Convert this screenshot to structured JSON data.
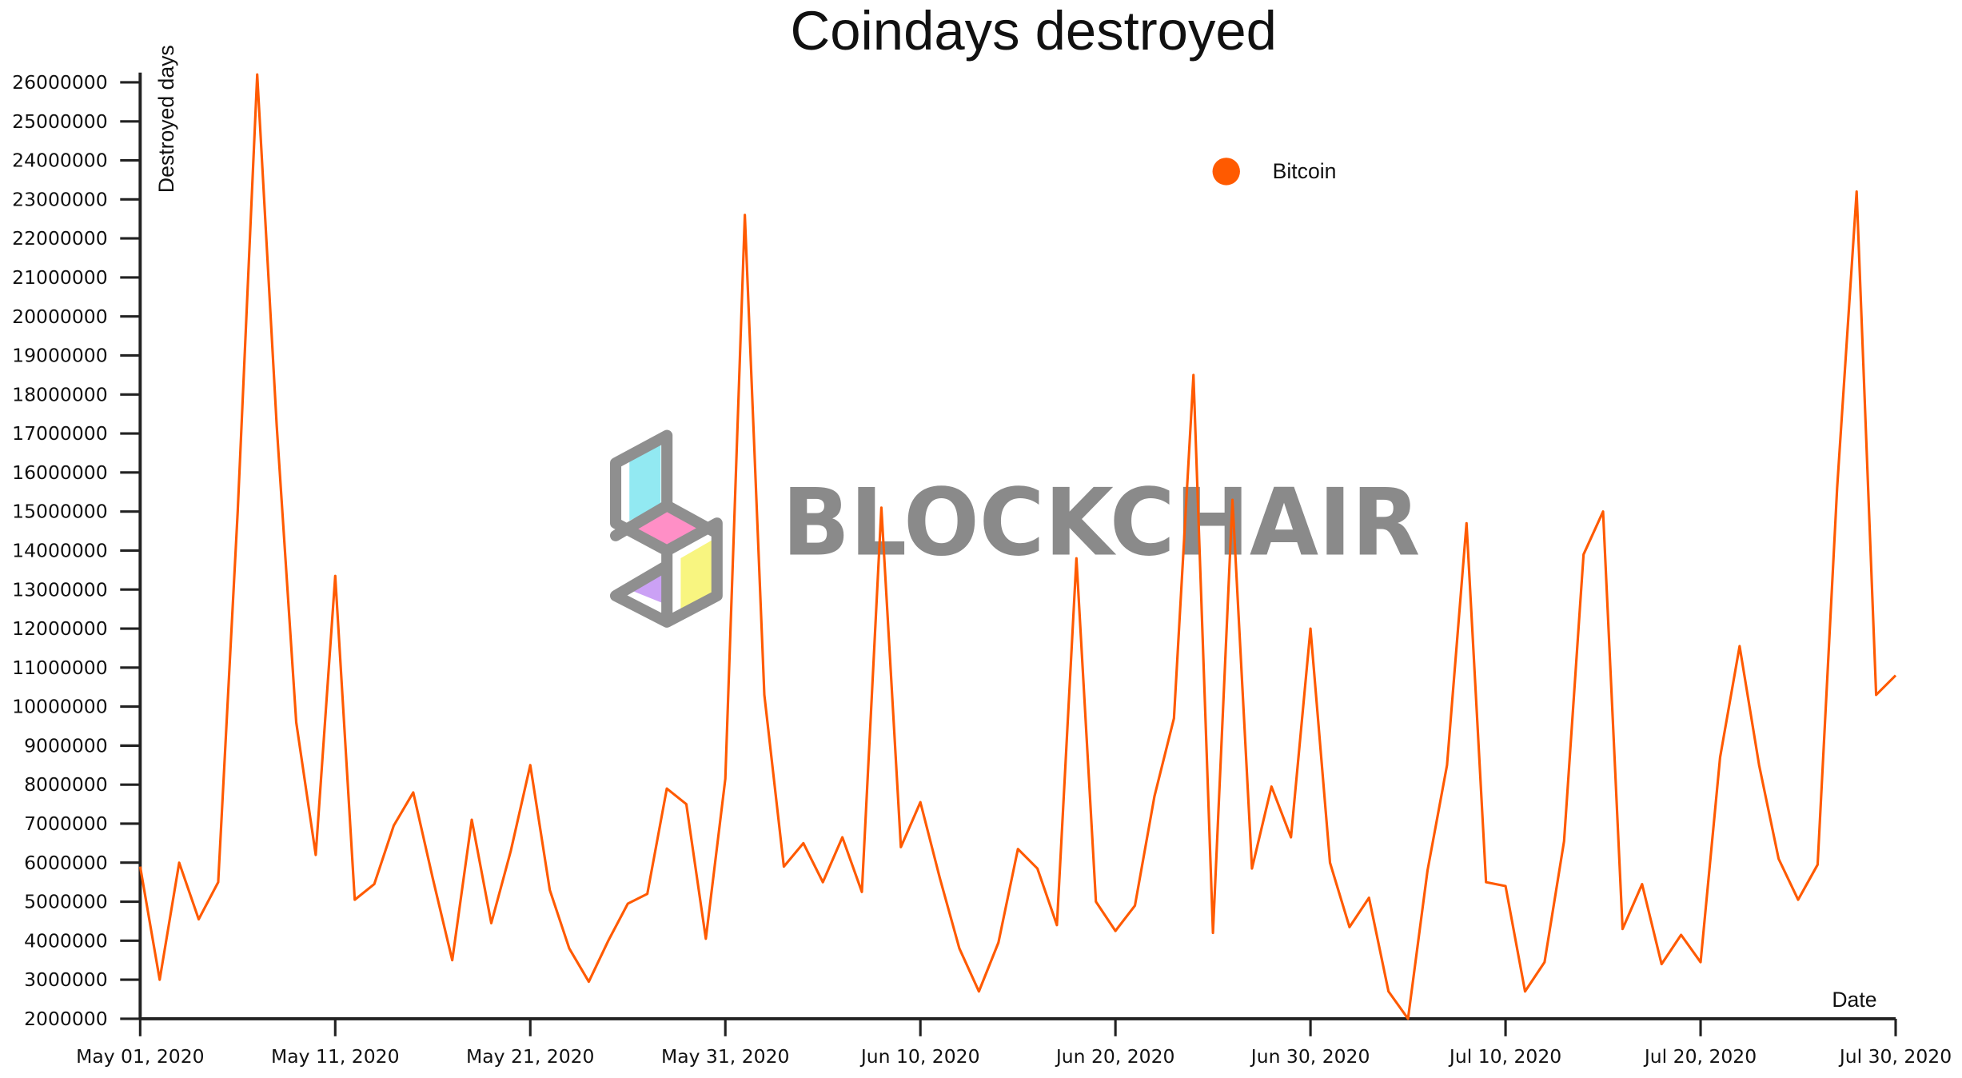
{
  "chart_data": {
    "type": "line",
    "title": "Coindays destroyed",
    "y_label": "Destroyed days",
    "x_label": "Date",
    "watermark": "BLOCKCHAIR",
    "legend": "top-right",
    "x": [
      "2020-05-01",
      "2020-05-02",
      "2020-05-03",
      "2020-05-04",
      "2020-05-05",
      "2020-05-06",
      "2020-05-07",
      "2020-05-08",
      "2020-05-09",
      "2020-05-10",
      "2020-05-11",
      "2020-05-12",
      "2020-05-13",
      "2020-05-14",
      "2020-05-15",
      "2020-05-16",
      "2020-05-17",
      "2020-05-18",
      "2020-05-19",
      "2020-05-20",
      "2020-05-21",
      "2020-05-22",
      "2020-05-23",
      "2020-05-24",
      "2020-05-25",
      "2020-05-26",
      "2020-05-27",
      "2020-05-28",
      "2020-05-29",
      "2020-05-30",
      "2020-05-31",
      "2020-06-01",
      "2020-06-02",
      "2020-06-03",
      "2020-06-04",
      "2020-06-05",
      "2020-06-06",
      "2020-06-07",
      "2020-06-08",
      "2020-06-09",
      "2020-06-10",
      "2020-06-11",
      "2020-06-12",
      "2020-06-13",
      "2020-06-14",
      "2020-06-15",
      "2020-06-16",
      "2020-06-17",
      "2020-06-18",
      "2020-06-19",
      "2020-06-20",
      "2020-06-21",
      "2020-06-22",
      "2020-06-23",
      "2020-06-24",
      "2020-06-25",
      "2020-06-26",
      "2020-06-27",
      "2020-06-28",
      "2020-06-29",
      "2020-06-30",
      "2020-07-01",
      "2020-07-02",
      "2020-07-03",
      "2020-07-04",
      "2020-07-05",
      "2020-07-06",
      "2020-07-07",
      "2020-07-08",
      "2020-07-09",
      "2020-07-10",
      "2020-07-11",
      "2020-07-12",
      "2020-07-13",
      "2020-07-14",
      "2020-07-15",
      "2020-07-16",
      "2020-07-17",
      "2020-07-18",
      "2020-07-19",
      "2020-07-20",
      "2020-07-21",
      "2020-07-22",
      "2020-07-23",
      "2020-07-24",
      "2020-07-25",
      "2020-07-26",
      "2020-07-27",
      "2020-07-28",
      "2020-07-29",
      "2020-07-30"
    ],
    "series": [
      {
        "name": "Bitcoin",
        "color": "#ff5a00",
        "values": [
          5900000,
          3000000,
          6000000,
          4550000,
          5500000,
          15000000,
          26200000,
          17200000,
          9600000,
          6200000,
          13350000,
          5050000,
          5450000,
          6950000,
          7800000,
          5600000,
          3500000,
          7100000,
          4450000,
          6300000,
          8500000,
          5300000,
          3800000,
          2950000,
          4000000,
          4950000,
          5200000,
          7900000,
          7500000,
          4050000,
          8150000,
          22600000,
          10300000,
          5900000,
          6500000,
          5500000,
          6650000,
          5250000,
          15100000,
          6400000,
          7550000,
          5600000,
          3800000,
          2700000,
          3950000,
          6350000,
          5850000,
          4400000,
          13800000,
          5000000,
          4250000,
          4900000,
          7700000,
          9700000,
          18500000,
          4200000,
          15300000,
          5850000,
          7950000,
          6650000,
          12000000,
          6000000,
          4350000,
          5100000,
          2700000,
          2000000,
          5800000,
          8500000,
          14700000,
          5500000,
          5400000,
          2700000,
          3450000,
          6550000,
          13900000,
          15000000,
          4300000,
          5450000,
          3400000,
          4150000,
          3450000,
          8700000,
          11550000,
          8500000,
          6100000,
          5050000,
          5950000,
          15600000,
          23200000,
          10300000,
          10800000
        ]
      }
    ],
    "xlim": [
      "2020-05-01",
      "2020-07-30"
    ],
    "xticks": [
      {
        "value": "2020-05-01",
        "label": "May 01, 2020"
      },
      {
        "value": "2020-05-11",
        "label": "May 11, 2020"
      },
      {
        "value": "2020-05-21",
        "label": "May 21, 2020"
      },
      {
        "value": "2020-05-31",
        "label": "May 31, 2020"
      },
      {
        "value": "2020-06-10",
        "label": "Jun 10, 2020"
      },
      {
        "value": "2020-06-20",
        "label": "Jun 20, 2020"
      },
      {
        "value": "2020-06-30",
        "label": "Jun 30, 2020"
      },
      {
        "value": "2020-07-10",
        "label": "Jul 10, 2020"
      },
      {
        "value": "2020-07-20",
        "label": "Jul 20, 2020"
      },
      {
        "value": "2020-07-30",
        "label": "Jul 30, 2020"
      }
    ],
    "ylim": [
      2000000,
      26250000
    ],
    "yticks": [
      2000000,
      3000000,
      4000000,
      5000000,
      6000000,
      7000000,
      8000000,
      9000000,
      10000000,
      11000000,
      12000000,
      13000000,
      14000000,
      15000000,
      16000000,
      17000000,
      18000000,
      19000000,
      20000000,
      21000000,
      22000000,
      23000000,
      24000000,
      25000000,
      26000000
    ],
    "grid": false
  }
}
